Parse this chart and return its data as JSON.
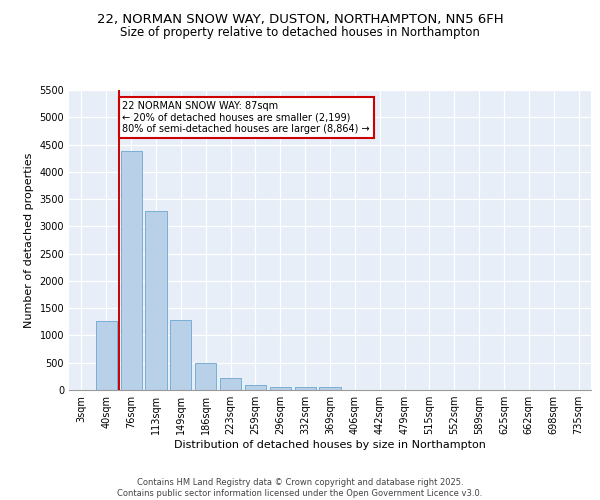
{
  "title_line1": "22, NORMAN SNOW WAY, DUSTON, NORTHAMPTON, NN5 6FH",
  "title_line2": "Size of property relative to detached houses in Northampton",
  "xlabel": "Distribution of detached houses by size in Northampton",
  "ylabel": "Number of detached properties",
  "footer_line1": "Contains HM Land Registry data © Crown copyright and database right 2025.",
  "footer_line2": "Contains public sector information licensed under the Open Government Licence v3.0.",
  "bar_labels": [
    "3sqm",
    "40sqm",
    "76sqm",
    "113sqm",
    "149sqm",
    "186sqm",
    "223sqm",
    "259sqm",
    "296sqm",
    "332sqm",
    "369sqm",
    "406sqm",
    "442sqm",
    "479sqm",
    "515sqm",
    "552sqm",
    "589sqm",
    "625sqm",
    "662sqm",
    "698sqm",
    "735sqm"
  ],
  "bar_values": [
    0,
    1270,
    4380,
    3290,
    1280,
    500,
    220,
    90,
    60,
    50,
    50,
    0,
    0,
    0,
    0,
    0,
    0,
    0,
    0,
    0,
    0
  ],
  "bar_color": "#b8d0e8",
  "bar_edgecolor": "#7aaed4",
  "annotation_text_line1": "22 NORMAN SNOW WAY: 87sqm",
  "annotation_text_line2": "← 20% of detached houses are smaller (2,199)",
  "annotation_text_line3": "80% of semi-detached houses are larger (8,864) →",
  "vline_color": "#cc0000",
  "vline_x": 1.5,
  "annotation_box_edgecolor": "#cc0000",
  "ylim": [
    0,
    5500
  ],
  "yticks": [
    0,
    500,
    1000,
    1500,
    2000,
    2500,
    3000,
    3500,
    4000,
    4500,
    5000,
    5500
  ],
  "bg_color": "#e8eef8",
  "grid_color": "#ffffff",
  "title_fontsize": 9.5,
  "subtitle_fontsize": 8.5,
  "ylabel_fontsize": 8,
  "xlabel_fontsize": 8,
  "tick_fontsize": 7,
  "footer_fontsize": 6
}
